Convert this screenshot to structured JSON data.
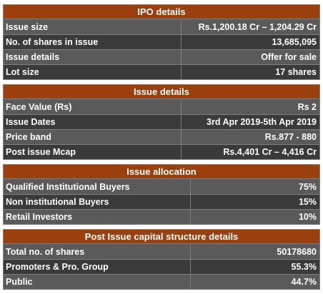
{
  "sections": [
    {
      "title": "IPO details",
      "rows": [
        {
          "label": "Issue size",
          "value": "Rs.1,200.18 Cr – 1,204.29 Cr"
        },
        {
          "label": "No. of shares in issue",
          "value": "13,685,095"
        },
        {
          "label": "Issue details",
          "value": "Offer for sale"
        },
        {
          "label": "Lot size",
          "value": "17 shares"
        }
      ]
    },
    {
      "title": "Issue details",
      "rows": [
        {
          "label": "Face Value (Rs)",
          "value": "Rs 2"
        },
        {
          "label": "Issue Dates",
          "value": "3rd Apr 2019-5th Apr 2019"
        },
        {
          "label": "Price band",
          "value": "Rs.877 - 880"
        },
        {
          "label": "Post issue Mcap",
          "value": "Rs.4,401 Cr – 4,416 Cr"
        }
      ]
    },
    {
      "title": "Issue allocation",
      "rows": [
        {
          "label": "Qualified Institutional Buyers",
          "value": "75%"
        },
        {
          "label": "Non institutional Buyers",
          "value": "15%"
        },
        {
          "label": "Retail Investors",
          "value": "10%"
        }
      ]
    },
    {
      "title": "Post Issue capital structure details",
      "rows": [
        {
          "label": "Total no. of shares",
          "value": "50178680"
        },
        {
          "label": "Promoters & Pro. Group",
          "value": "55.3%"
        },
        {
          "label": "Public",
          "value": "44.7%"
        }
      ]
    }
  ]
}
